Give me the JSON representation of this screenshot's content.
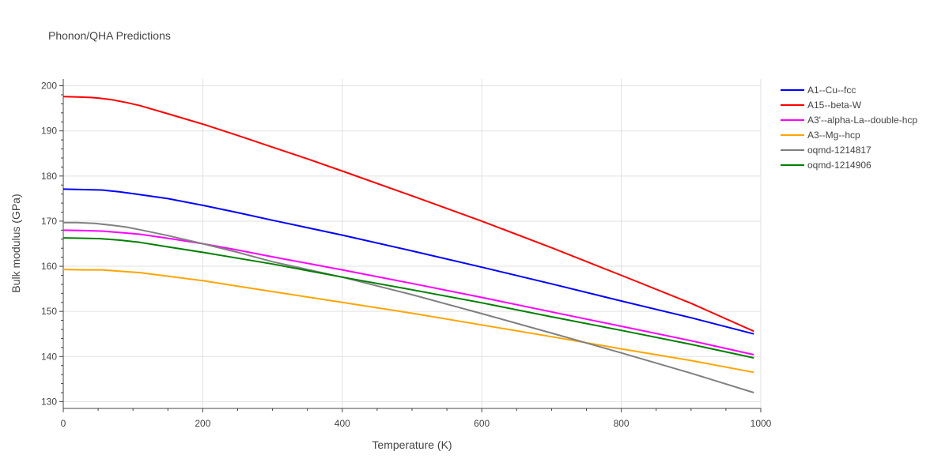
{
  "chart_data": {
    "type": "line",
    "title": "Phonon/QHA Predictions",
    "xlabel": "Temperature (K)",
    "ylabel": "Bulk modulus (GPa)",
    "xlim": [
      0,
      1000
    ],
    "ylim": [
      128.5,
      201.5
    ],
    "x_ticks": [
      0,
      200,
      400,
      600,
      800,
      1000
    ],
    "y_ticks": [
      130,
      140,
      150,
      160,
      170,
      180,
      190,
      200
    ],
    "x_tick_labels": [
      "0",
      "200",
      "400",
      "600",
      "800",
      "1000"
    ],
    "y_tick_labels": [
      "130",
      "140",
      "150",
      "160",
      "170",
      "180",
      "190",
      "200"
    ],
    "grid": true,
    "legend_position": "top-right",
    "series": [
      {
        "name": "A1--Cu--fcc",
        "color": "#0000ff",
        "x": [
          0,
          30,
          55,
          80,
          100,
          150,
          200,
          250,
          300,
          400,
          500,
          600,
          700,
          800,
          900,
          990
        ],
        "y": [
          177.1,
          177.0,
          176.9,
          176.5,
          176.1,
          175.0,
          173.5,
          171.9,
          170.2,
          166.9,
          163.4,
          159.8,
          156.1,
          152.3,
          148.6,
          145.0
        ]
      },
      {
        "name": "A15--beta-W",
        "color": "#ff0000",
        "x": [
          0,
          20,
          40,
          55,
          70,
          90,
          110,
          150,
          200,
          250,
          300,
          350,
          400,
          500,
          600,
          700,
          800,
          900,
          990
        ],
        "y": [
          197.6,
          197.5,
          197.4,
          197.2,
          196.9,
          196.3,
          195.6,
          193.8,
          191.5,
          189.0,
          186.4,
          183.8,
          181.1,
          175.6,
          170.0,
          164.1,
          158.0,
          151.8,
          145.6
        ]
      },
      {
        "name": "A3'--alpha-La--double-hcp",
        "color": "#ff00ff",
        "x": [
          0,
          30,
          55,
          80,
          110,
          150,
          200,
          250,
          300,
          400,
          500,
          600,
          700,
          800,
          900,
          990
        ],
        "y": [
          168.0,
          167.9,
          167.8,
          167.5,
          167.1,
          166.2,
          165.0,
          163.6,
          162.1,
          159.2,
          156.2,
          153.1,
          149.9,
          146.7,
          143.5,
          140.4
        ]
      },
      {
        "name": "A3--Mg--hcp",
        "color": "#ffa500",
        "x": [
          0,
          30,
          55,
          80,
          110,
          150,
          200,
          250,
          300,
          400,
          500,
          600,
          700,
          800,
          900,
          990
        ],
        "y": [
          159.3,
          159.2,
          159.2,
          158.9,
          158.6,
          157.8,
          156.8,
          155.6,
          154.4,
          152.0,
          149.6,
          147.0,
          144.4,
          141.7,
          139.1,
          136.5
        ]
      },
      {
        "name": "oqmd-1214817",
        "color": "#808080",
        "x": [
          0,
          20,
          45,
          70,
          90,
          110,
          150,
          200,
          250,
          300,
          400,
          500,
          600,
          700,
          800,
          900,
          990
        ],
        "y": [
          169.7,
          169.7,
          169.5,
          169.1,
          168.7,
          168.1,
          166.8,
          165.0,
          163.1,
          161.0,
          157.6,
          153.7,
          149.5,
          145.2,
          140.8,
          136.3,
          132.0
        ]
      },
      {
        "name": "oqmd-1214906",
        "color": "#008000",
        "x": [
          0,
          30,
          55,
          80,
          110,
          150,
          200,
          250,
          300,
          400,
          500,
          600,
          700,
          800,
          900,
          990
        ],
        "y": [
          166.3,
          166.2,
          166.1,
          165.8,
          165.3,
          164.3,
          163.1,
          161.8,
          160.5,
          157.6,
          154.8,
          151.9,
          148.8,
          145.8,
          142.7,
          139.7
        ]
      }
    ]
  }
}
